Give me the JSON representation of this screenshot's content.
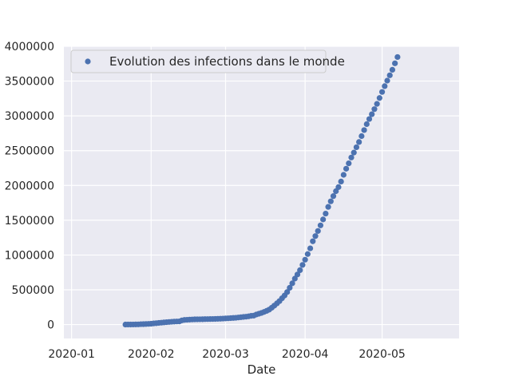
{
  "chart_data": {
    "type": "scatter",
    "title": "",
    "xlabel": "Date",
    "ylabel": "",
    "grid": true,
    "legend_position": "top-left",
    "x_ticks": [
      "2020-01",
      "2020-02",
      "2020-03",
      "2020-04",
      "2020-05"
    ],
    "y_ticks": [
      "0",
      "500000",
      "1000000",
      "1500000",
      "2000000",
      "2500000",
      "3000000",
      "3500000",
      "4000000"
    ],
    "xlim": [
      "2019-12-29",
      "2020-05-31"
    ],
    "ylim": [
      -200000,
      4000000
    ],
    "colors": {
      "marker": "#4c72b0",
      "plot_background": "#eaeaf2",
      "grid": "#ffffff",
      "text": "#262626"
    },
    "series": [
      {
        "name": "Evolution des infections dans le monde",
        "x": [
          "2020-01-22",
          "2020-01-23",
          "2020-01-24",
          "2020-01-25",
          "2020-01-26",
          "2020-01-27",
          "2020-01-28",
          "2020-01-29",
          "2020-01-30",
          "2020-01-31",
          "2020-02-01",
          "2020-02-02",
          "2020-02-03",
          "2020-02-04",
          "2020-02-05",
          "2020-02-06",
          "2020-02-07",
          "2020-02-08",
          "2020-02-09",
          "2020-02-10",
          "2020-02-11",
          "2020-02-12",
          "2020-02-13",
          "2020-02-14",
          "2020-02-15",
          "2020-02-16",
          "2020-02-17",
          "2020-02-18",
          "2020-02-19",
          "2020-02-20",
          "2020-02-21",
          "2020-02-22",
          "2020-02-23",
          "2020-02-24",
          "2020-02-25",
          "2020-02-26",
          "2020-02-27",
          "2020-02-28",
          "2020-02-29",
          "2020-03-01",
          "2020-03-02",
          "2020-03-03",
          "2020-03-04",
          "2020-03-05",
          "2020-03-06",
          "2020-03-07",
          "2020-03-08",
          "2020-03-09",
          "2020-03-10",
          "2020-03-11",
          "2020-03-12",
          "2020-03-13",
          "2020-03-14",
          "2020-03-15",
          "2020-03-16",
          "2020-03-17",
          "2020-03-18",
          "2020-03-19",
          "2020-03-20",
          "2020-03-21",
          "2020-03-22",
          "2020-03-23",
          "2020-03-24",
          "2020-03-25",
          "2020-03-26",
          "2020-03-27",
          "2020-03-28",
          "2020-03-29",
          "2020-03-30",
          "2020-03-31",
          "2020-04-01",
          "2020-04-02",
          "2020-04-03",
          "2020-04-04",
          "2020-04-05",
          "2020-04-06",
          "2020-04-07",
          "2020-04-08",
          "2020-04-09",
          "2020-04-10",
          "2020-04-11",
          "2020-04-12",
          "2020-04-13",
          "2020-04-14",
          "2020-04-15",
          "2020-04-16",
          "2020-04-17",
          "2020-04-18",
          "2020-04-19",
          "2020-04-20",
          "2020-04-21",
          "2020-04-22",
          "2020-04-23",
          "2020-04-24",
          "2020-04-25",
          "2020-04-26",
          "2020-04-27",
          "2020-04-28",
          "2020-04-29",
          "2020-04-30",
          "2020-05-01",
          "2020-05-02",
          "2020-05-03",
          "2020-05-04",
          "2020-05-05",
          "2020-05-06",
          "2020-05-07"
        ],
        "y": [
          555,
          654,
          941,
          1434,
          2118,
          2927,
          5578,
          6166,
          8234,
          9927,
          12038,
          16787,
          19881,
          23892,
          27635,
          30794,
          34391,
          37120,
          40150,
          42762,
          44802,
          45221,
          60368,
          66885,
          69030,
          71224,
          73258,
          75136,
          75639,
          76197,
          76819,
          78572,
          78958,
          79561,
          80406,
          81388,
          82746,
          84112,
          86011,
          88369,
          90306,
          92840,
          95120,
          97886,
          101801,
          105847,
          109821,
          113590,
          118620,
          125875,
          128352,
          145205,
          156101,
          167454,
          181574,
          197102,
          214821,
          242570,
          272208,
          304507,
          336953,
          378235,
          418045,
          467653,
          529591,
          593291,
          660706,
          720117,
          782365,
          857487,
          932605,
          1013466,
          1095917,
          1197405,
          1272115,
          1345101,
          1426096,
          1511104,
          1595350,
          1691719,
          1771514,
          1846680,
          1917320,
          1976191,
          2056054,
          2152437,
          2240190,
          2317759,
          2401379,
          2472259,
          2549123,
          2624090,
          2708885,
          2795731,
          2881140,
          2955033,
          3023722,
          3097229,
          3172287,
          3256846,
          3343777,
          3427343,
          3506729,
          3583055,
          3662691,
          3755341,
          3845718
        ]
      }
    ]
  }
}
